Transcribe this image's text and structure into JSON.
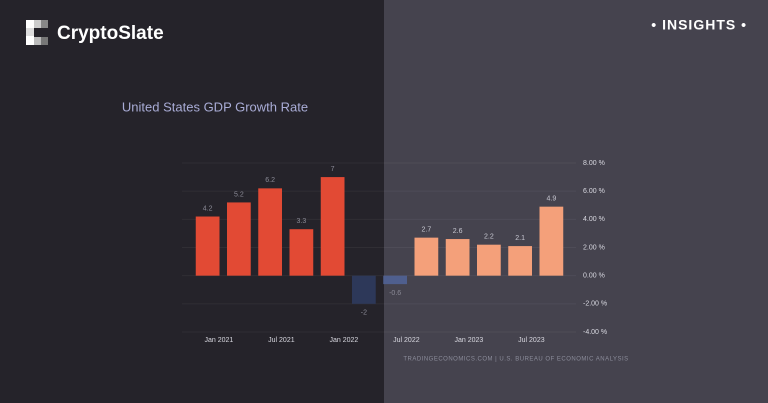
{
  "header": {
    "brand": "CryptoSlate",
    "badge": "• INSIGHTS •"
  },
  "chart_data": {
    "type": "bar",
    "title": "United States GDP Growth Rate",
    "categories": [
      "Jan 2021",
      null,
      "Jul 2021",
      null,
      "Jan 2022",
      null,
      "Jul 2022",
      null,
      "Jan 2023",
      null,
      "Jul 2023",
      null
    ],
    "values": [
      4.2,
      5.2,
      6.2,
      3.3,
      7,
      -2,
      -0.6,
      2.7,
      2.6,
      2.2,
      2.1,
      4.9
    ],
    "colors": [
      "#e24a34",
      "#e24a34",
      "#e24a34",
      "#e24a34",
      "#e24a34",
      "#2d3859",
      "#4f5f8e",
      "#f4a07a",
      "#f4a07a",
      "#f4a07a",
      "#f4a07a",
      "#f4a07a"
    ],
    "ylim": [
      -4,
      8
    ],
    "yticks": [
      {
        "value": 8,
        "label": "8.00 %"
      },
      {
        "value": 6,
        "label": "6.00 %"
      },
      {
        "value": 4,
        "label": "4.00 %"
      },
      {
        "value": 2,
        "label": "2.00 %"
      },
      {
        "value": 0,
        "label": "0.00 %"
      },
      {
        "value": -2,
        "label": "-2.00 %"
      },
      {
        "value": -4,
        "label": "-4.00 %"
      }
    ],
    "grid": true,
    "source": "TRADINGECONOMICS.COM  |  U.S. BUREAU OF ECONOMIC ANALYSIS"
  }
}
